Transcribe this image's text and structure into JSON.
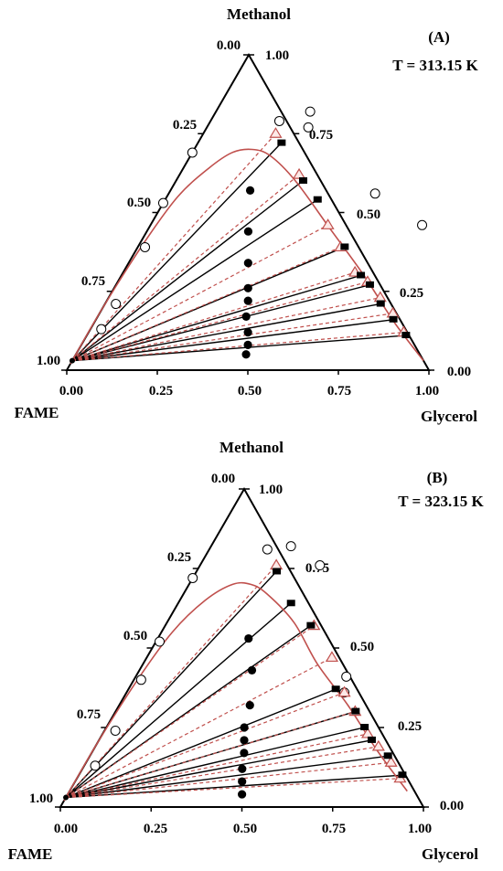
{
  "chart_data": [
    {
      "type": "ternary",
      "panel_label": "(A)",
      "temperature_label": "T = 313.15 K",
      "vertex_labels": {
        "top": "Methanol",
        "left": "FAME",
        "right": "Glycerol"
      },
      "axes": {
        "bottom": {
          "ticks": [
            "0.00",
            "0.25",
            "0.50",
            "0.75",
            "1.00"
          ]
        },
        "left": {
          "ticks": [
            "0.00",
            "0.25",
            "0.50",
            "0.75",
            "1.00"
          ]
        },
        "right": {
          "ticks": [
            "1.00",
            "0.75",
            "0.50",
            "0.25",
            "0.00"
          ]
        }
      },
      "grid": false,
      "composition_order": [
        "methanol",
        "glycerol"
      ],
      "series": [
        {
          "kind": "binodal_open_circles",
          "marker": "open-circle",
          "color": "#000000",
          "points": [
            [
              0.69,
              0.0
            ],
            [
              0.53,
              0.0
            ],
            [
              0.39,
              0.02
            ],
            [
              0.21,
              0.03
            ],
            [
              0.13,
              0.03
            ],
            [
              0.79,
              0.19
            ],
            [
              0.82,
              0.26
            ],
            [
              0.77,
              0.28
            ],
            [
              0.56,
              0.57
            ],
            [
              0.46,
              0.75
            ]
          ]
        },
        {
          "kind": "feed_filled_circles",
          "marker": "filled-circle",
          "color": "#000000",
          "points": [
            [
              0.57,
              0.22
            ],
            [
              0.44,
              0.28
            ],
            [
              0.34,
              0.33
            ],
            [
              0.26,
              0.37
            ],
            [
              0.22,
              0.39
            ],
            [
              0.17,
              0.41
            ],
            [
              0.12,
              0.44
            ],
            [
              0.08,
              0.46
            ],
            [
              0.05,
              0.47
            ]
          ]
        },
        {
          "kind": "exp_glycerol_rich_squares",
          "marker": "filled-square",
          "color": "#000000",
          "points": [
            [
              0.72,
              0.23
            ],
            [
              0.6,
              0.35
            ],
            [
              0.54,
              0.42
            ],
            [
              0.39,
              0.57
            ],
            [
              0.3,
              0.66
            ],
            [
              0.27,
              0.7
            ],
            [
              0.21,
              0.76
            ],
            [
              0.16,
              0.82
            ],
            [
              0.11,
              0.88
            ]
          ]
        },
        {
          "kind": "calc_glycerol_rich_triangles",
          "marker": "open-triangle",
          "color": "#c0504d",
          "points": [
            [
              0.75,
              0.2
            ],
            [
              0.62,
              0.33
            ],
            [
              0.46,
              0.49
            ],
            [
              0.39,
              0.56
            ],
            [
              0.31,
              0.64
            ],
            [
              0.28,
              0.69
            ],
            [
              0.23,
              0.75
            ],
            [
              0.18,
              0.81
            ],
            [
              0.12,
              0.87
            ]
          ]
        },
        {
          "kind": "fame_rich_end",
          "points": [
            [
              0.03,
              0.0
            ]
          ]
        }
      ],
      "binodal_curve": [
        [
          0.02,
          0.0
        ],
        [
          0.2,
          0.0
        ],
        [
          0.4,
          0.01
        ],
        [
          0.55,
          0.03
        ],
        [
          0.64,
          0.07
        ],
        [
          0.69,
          0.11
        ],
        [
          0.7,
          0.16
        ],
        [
          0.68,
          0.22
        ],
        [
          0.6,
          0.33
        ],
        [
          0.45,
          0.5
        ],
        [
          0.3,
          0.67
        ],
        [
          0.15,
          0.83
        ],
        [
          0.03,
          0.97
        ]
      ]
    },
    {
      "type": "ternary",
      "panel_label": "(B)",
      "temperature_label": "T = 323.15 K",
      "vertex_labels": {
        "top": "Methanol",
        "left": "FAME",
        "right": "Glycerol"
      },
      "axes": {
        "bottom": {
          "ticks": [
            "0.00",
            "0.25",
            "0.50",
            "0.75",
            "1.00"
          ]
        },
        "left": {
          "ticks": [
            "0.00",
            "0.25",
            "0.50",
            "0.75",
            "1.00"
          ]
        },
        "right": {
          "ticks": [
            "1.00",
            "0.75",
            "0.50",
            "0.25",
            "0.00"
          ]
        }
      },
      "grid": false,
      "composition_order": [
        "methanol",
        "glycerol"
      ],
      "series": [
        {
          "kind": "binodal_open_circles",
          "marker": "open-circle",
          "color": "#000000",
          "points": [
            [
              0.72,
              0.0
            ],
            [
              0.52,
              0.01
            ],
            [
              0.4,
              0.02
            ],
            [
              0.24,
              0.03
            ],
            [
              0.13,
              0.03
            ],
            [
              0.81,
              0.16
            ],
            [
              0.82,
              0.22
            ],
            [
              0.76,
              0.33
            ],
            [
              0.41,
              0.58
            ],
            [
              0.36,
              0.6
            ]
          ]
        },
        {
          "kind": "feed_filled_circles",
          "marker": "filled-circle",
          "color": "#000000",
          "points": [
            [
              0.53,
              0.25
            ],
            [
              0.43,
              0.31
            ],
            [
              0.32,
              0.36
            ],
            [
              0.25,
              0.38
            ],
            [
              0.21,
              0.4
            ],
            [
              0.17,
              0.42
            ],
            [
              0.12,
              0.44
            ],
            [
              0.08,
              0.46
            ],
            [
              0.04,
              0.48
            ]
          ]
        },
        {
          "kind": "exp_glycerol_rich_squares",
          "marker": "filled-square",
          "color": "#000000",
          "points": [
            [
              0.74,
              0.22
            ],
            [
              0.64,
              0.31
            ],
            [
              0.57,
              0.4
            ],
            [
              0.37,
              0.57
            ],
            [
              0.3,
              0.66
            ],
            [
              0.25,
              0.71
            ],
            [
              0.21,
              0.75
            ],
            [
              0.16,
              0.82
            ],
            [
              0.1,
              0.89
            ]
          ]
        },
        {
          "kind": "calc_glycerol_rich_triangles",
          "marker": "open-triangle",
          "color": "#c0504d",
          "points": [
            [
              0.76,
              0.21
            ],
            [
              0.57,
              0.41
            ],
            [
              0.47,
              0.51
            ],
            [
              0.36,
              0.6
            ],
            [
              0.3,
              0.66
            ],
            [
              0.23,
              0.73
            ],
            [
              0.19,
              0.78
            ],
            [
              0.14,
              0.84
            ],
            [
              0.09,
              0.89
            ]
          ]
        },
        {
          "kind": "fame_rich_end",
          "points": [
            [
              0.03,
              0.0
            ]
          ]
        }
      ],
      "binodal_curve": [
        [
          0.02,
          0.0
        ],
        [
          0.2,
          0.0
        ],
        [
          0.4,
          0.01
        ],
        [
          0.55,
          0.03
        ],
        [
          0.65,
          0.07
        ],
        [
          0.7,
          0.12
        ],
        [
          0.7,
          0.17
        ],
        [
          0.67,
          0.23
        ],
        [
          0.58,
          0.35
        ],
        [
          0.45,
          0.48
        ],
        [
          0.32,
          0.63
        ],
        [
          0.18,
          0.78
        ],
        [
          0.05,
          0.93
        ]
      ]
    }
  ]
}
